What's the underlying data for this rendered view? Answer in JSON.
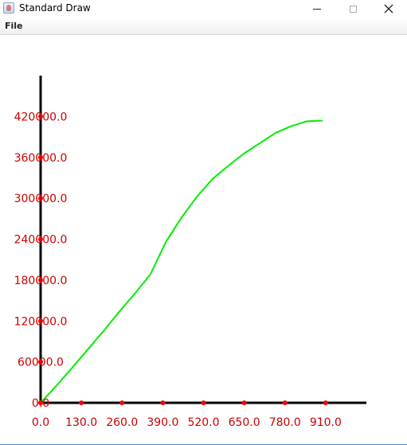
{
  "window": {
    "title": "Standard Draw",
    "icons": {
      "app": "java-app-icon",
      "minimize": "minimize-icon",
      "maximize": "maximize-icon",
      "close": "close-icon"
    }
  },
  "menu": {
    "items": [
      "File"
    ]
  },
  "colors": {
    "axis": "#000000",
    "tick_label": "#cc0000",
    "tick_dot": "#ff0000",
    "series": "#00ee00"
  },
  "chart_data": {
    "type": "line",
    "title": "",
    "xlabel": "",
    "ylabel": "",
    "xlim": [
      0,
      1040
    ],
    "ylim": [
      0,
      480000
    ],
    "x_ticks": [
      0,
      130,
      260,
      390,
      520,
      650,
      780,
      910
    ],
    "x_tick_labels": [
      "0.0",
      "130.0",
      "260.0",
      "390.0",
      "520.0",
      "650.0",
      "780.0",
      "910.0"
    ],
    "y_ticks": [
      0,
      60000,
      120000,
      180000,
      240000,
      300000,
      360000,
      420000
    ],
    "y_tick_labels": [
      "0.0",
      "60000.0",
      "120000.0",
      "180000.0",
      "240000.0",
      "300000.0",
      "360000.0",
      "420000.0"
    ],
    "grid": false,
    "series": [
      {
        "color": "#00ee00",
        "x": [
          0,
          50,
          100,
          150,
          200,
          250,
          300,
          350,
          400,
          450,
          500,
          550,
          600,
          650,
          700,
          750,
          800,
          850,
          900
        ],
        "y": [
          0,
          25000,
          51000,
          78000,
          105000,
          133000,
          160000,
          188000,
          236000,
          272000,
          303000,
          329000,
          348000,
          366000,
          381000,
          396000,
          406000,
          413000,
          414000
        ]
      }
    ]
  }
}
